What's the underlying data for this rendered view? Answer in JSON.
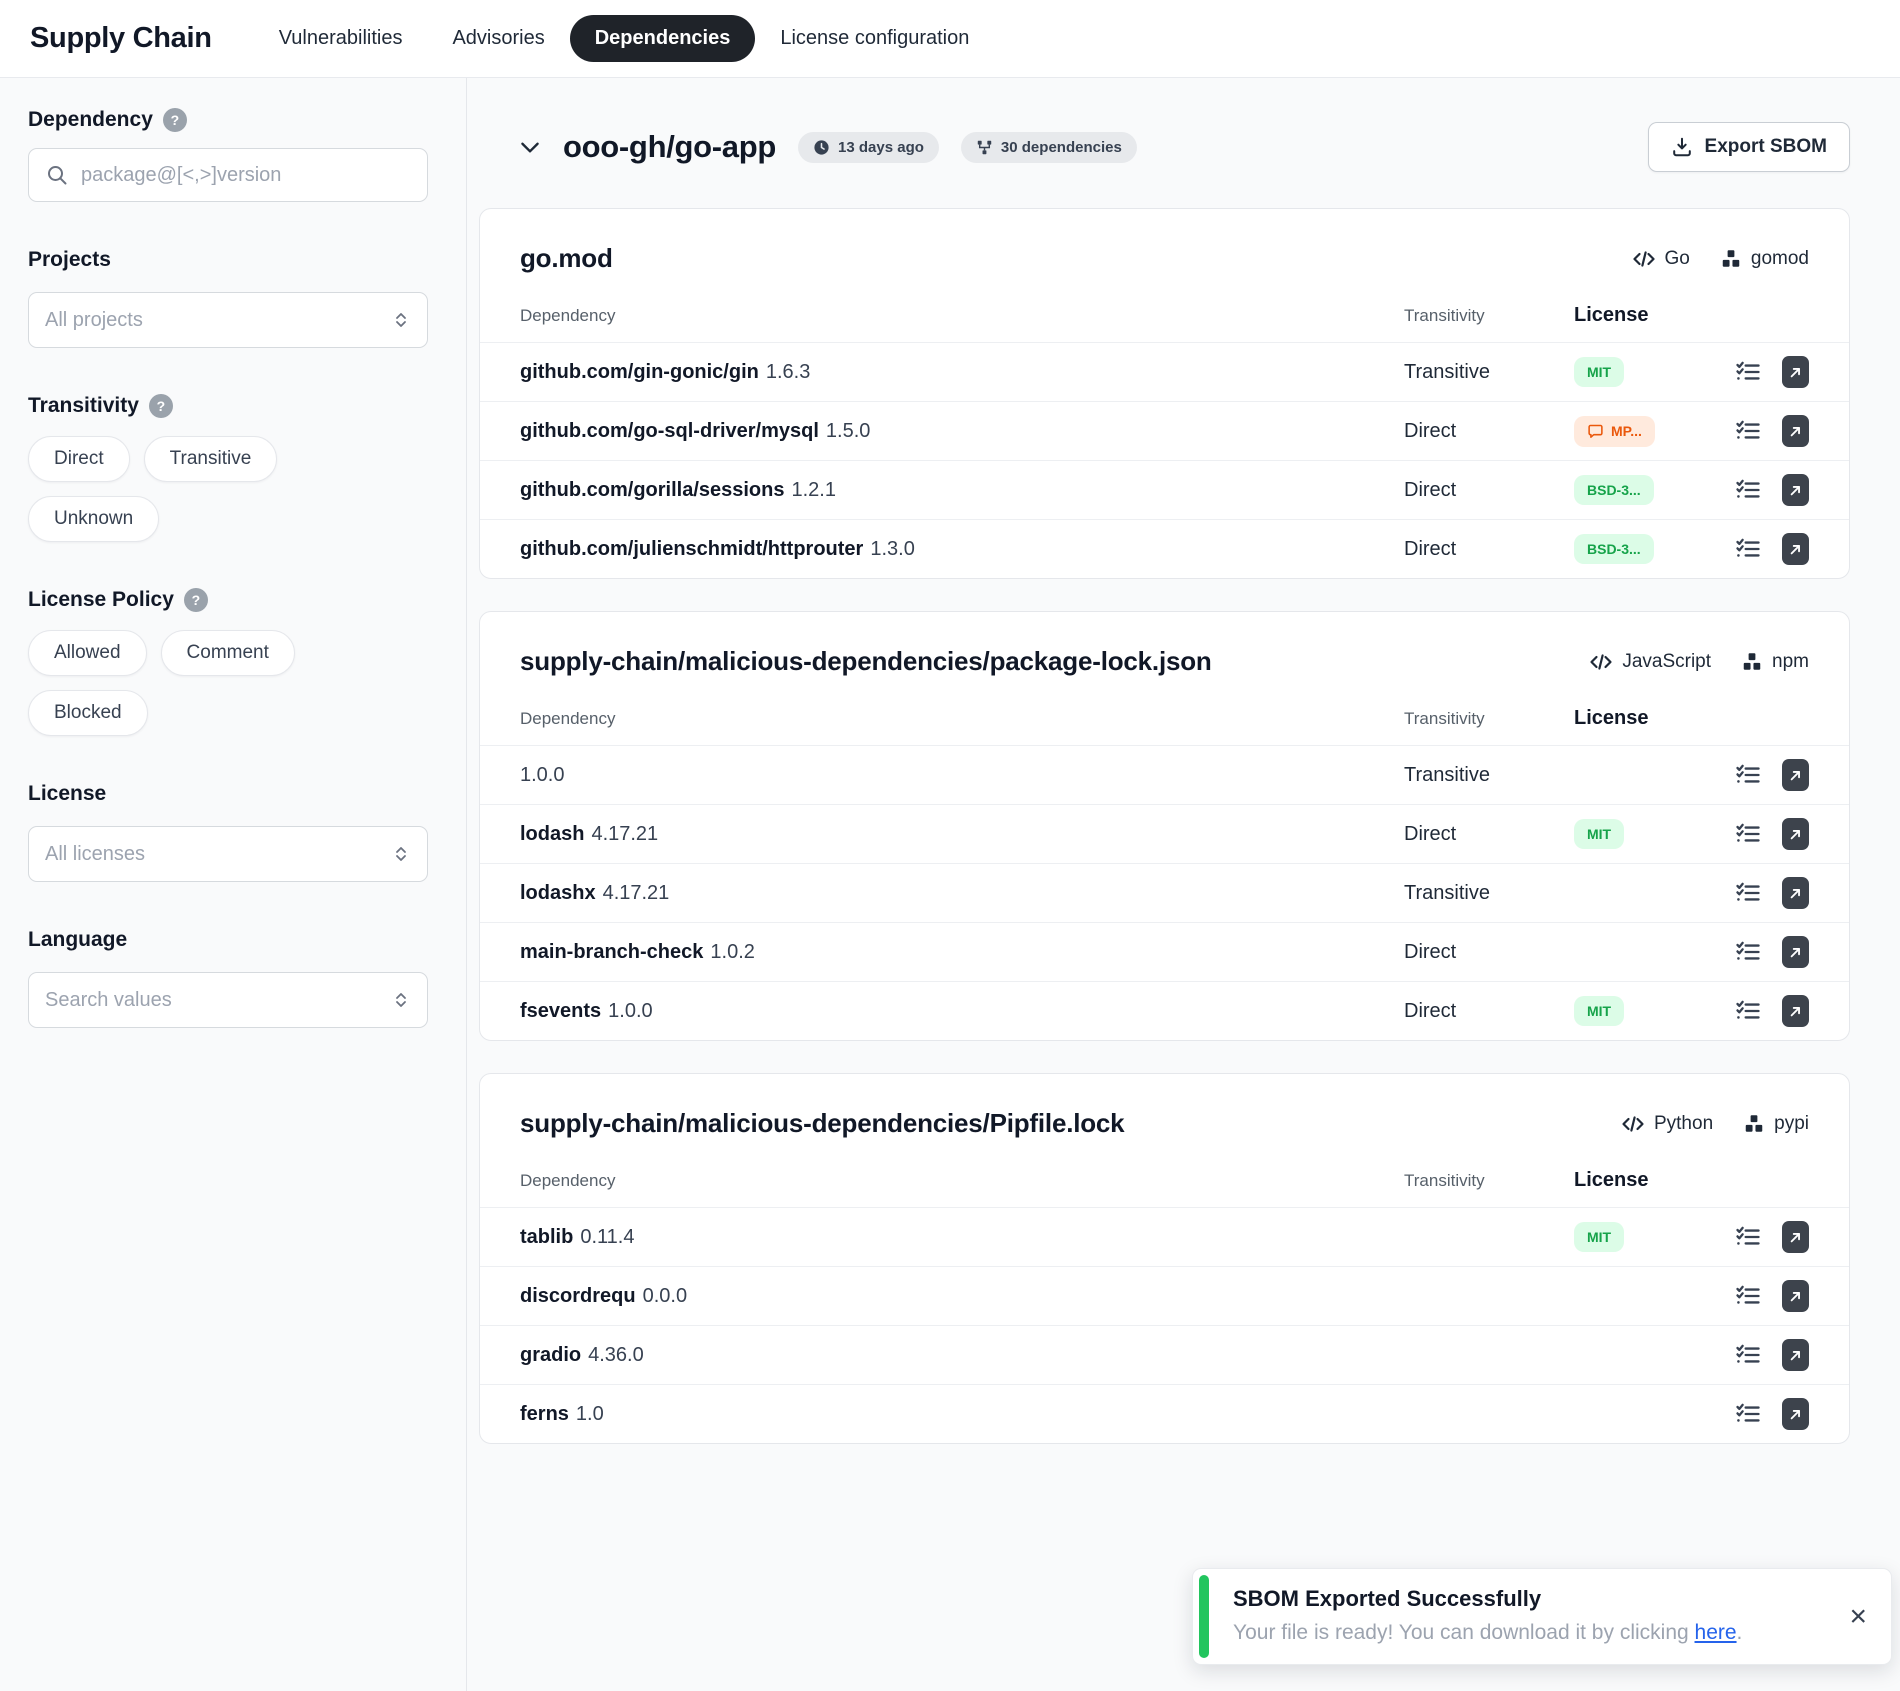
{
  "header": {
    "title": "Supply Chain",
    "tabs": [
      {
        "label": "Vulnerabilities",
        "active": false
      },
      {
        "label": "Advisories",
        "active": false
      },
      {
        "label": "Dependencies",
        "active": true
      },
      {
        "label": "License configuration",
        "active": false
      }
    ]
  },
  "sidebar": {
    "dependency_label": "Dependency",
    "search_placeholder": "package@[<,>]version",
    "projects_label": "Projects",
    "projects_value": "All projects",
    "transitivity_label": "Transitivity",
    "transitivity_options": [
      "Direct",
      "Transitive",
      "Unknown"
    ],
    "license_policy_label": "License Policy",
    "license_policy_options": [
      "Allowed",
      "Comment",
      "Blocked"
    ],
    "license_label": "License",
    "license_value": "All licenses",
    "language_label": "Language",
    "language_value": "Search values"
  },
  "main": {
    "project_title": "ooo-gh/go-app",
    "updated_badge": "13 days ago",
    "dependencies_badge": "30 dependencies",
    "export_button": "Export SBOM",
    "columns": {
      "dependency": "Dependency",
      "transitivity": "Transitivity",
      "license": "License"
    },
    "cards": [
      {
        "file": "go.mod",
        "language": "Go",
        "ecosystem": "gomod",
        "rows": [
          {
            "name": "github.com/gin-gonic/gin",
            "version": "1.6.3",
            "transitivity": "Transitive",
            "license": "MIT",
            "license_type": "allowed"
          },
          {
            "name": "github.com/go-sql-driver/mysql",
            "version": "1.5.0",
            "transitivity": "Direct",
            "license": "MP...",
            "license_type": "comment"
          },
          {
            "name": "github.com/gorilla/sessions",
            "version": "1.2.1",
            "transitivity": "Direct",
            "license": "BSD-3...",
            "license_type": "allowed"
          },
          {
            "name": "github.com/julienschmidt/httprouter",
            "version": "1.3.0",
            "transitivity": "Direct",
            "license": "BSD-3...",
            "license_type": "allowed"
          }
        ]
      },
      {
        "file": "supply-chain/malicious-dependencies/package-lock.json",
        "language": "JavaScript",
        "ecosystem": "npm",
        "rows": [
          {
            "name": "",
            "version": "1.0.0",
            "transitivity": "Transitive",
            "license": null
          },
          {
            "name": "lodash",
            "version": "4.17.21",
            "transitivity": "Direct",
            "license": "MIT",
            "license_type": "allowed"
          },
          {
            "name": "lodashx",
            "version": "4.17.21",
            "transitivity": "Transitive",
            "license": null
          },
          {
            "name": "main-branch-check",
            "version": "1.0.2",
            "transitivity": "Direct",
            "license": null
          },
          {
            "name": "fsevents",
            "version": "1.0.0",
            "transitivity": "Direct",
            "license": "MIT",
            "license_type": "allowed"
          }
        ]
      },
      {
        "file": "supply-chain/malicious-dependencies/Pipfile.lock",
        "language": "Python",
        "ecosystem": "pypi",
        "rows": [
          {
            "name": "tablib",
            "version": "0.11.4",
            "transitivity": "",
            "license": "MIT",
            "license_type": "allowed"
          },
          {
            "name": "discordrequ",
            "version": "0.0.0",
            "transitivity": "",
            "license": null
          },
          {
            "name": "gradio",
            "version": "4.36.0",
            "transitivity": "",
            "license": null
          },
          {
            "name": "ferns",
            "version": "1.0",
            "transitivity": "",
            "license": null
          }
        ]
      }
    ]
  },
  "toast": {
    "title": "SBOM Exported Successfully",
    "message_prefix": "Your file is ready! You can download it by clicking ",
    "link_text": "here",
    "message_suffix": ".",
    "close_label": "×"
  },
  "colors": {
    "active_tab_bg": "#1f2329",
    "badge_allowed_bg": "#dcfce7",
    "badge_allowed_text": "#16a34a",
    "badge_comment_bg": "#ffeadd",
    "badge_comment_text": "#ea580c",
    "toast_accent": "#22c55e",
    "link_blue": "#2563eb",
    "page_bg": "#f9fafb"
  }
}
